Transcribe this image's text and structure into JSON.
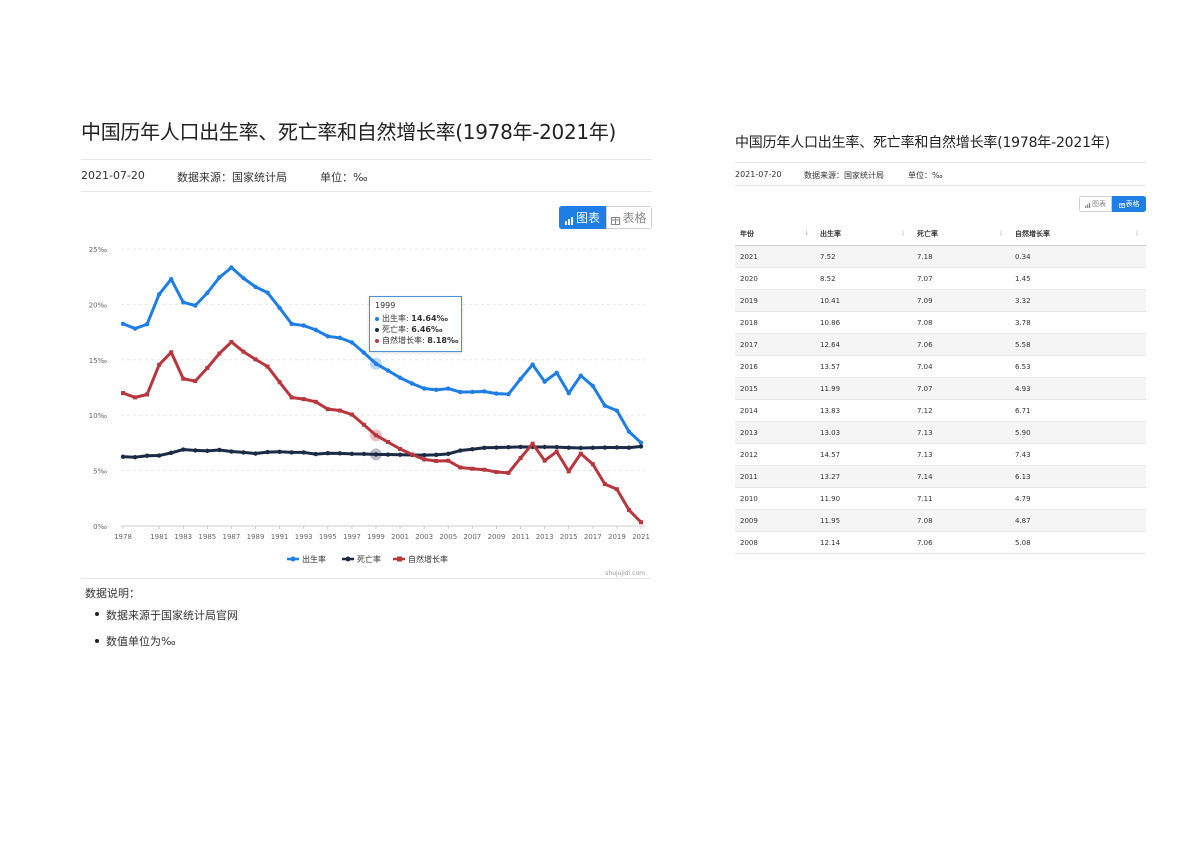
{
  "left": {
    "title": "中国历年人口出生率、死亡率和自然增长率(1978年-2021年)",
    "date": "2021-07-20",
    "source": "数据来源：国家统计局",
    "unit": "单位：‰",
    "chart_button": "图表",
    "table_button": "表格",
    "watermark": "shujujidi.com",
    "notes_title": "数据说明：",
    "notes": [
      "数据来源于国家统计局官网",
      "数值单位为‰"
    ]
  },
  "tooltip": {
    "year": "1999",
    "rows": [
      {
        "label": "出生率: ",
        "value": "14.64‰"
      },
      {
        "label": "死亡率: ",
        "value": "6.46‰"
      },
      {
        "label": "自然增长率: ",
        "value": "8.18‰"
      }
    ]
  },
  "colors": {
    "birth": "#1e7ee6",
    "death": "#1c2b45",
    "growth": "#b8363d",
    "accent": "#1e7ee6"
  },
  "chart_data": {
    "type": "line",
    "x": [
      1978,
      1979,
      1980,
      1981,
      1982,
      1983,
      1984,
      1985,
      1986,
      1987,
      1988,
      1989,
      1990,
      1991,
      1992,
      1993,
      1994,
      1995,
      1996,
      1997,
      1998,
      1999,
      2000,
      2001,
      2002,
      2003,
      2004,
      2005,
      2006,
      2007,
      2008,
      2009,
      2010,
      2011,
      2012,
      2013,
      2014,
      2015,
      2016,
      2017,
      2018,
      2019,
      2020,
      2021
    ],
    "x_tick_labels": [
      "1978",
      "1981",
      "1983",
      "1985",
      "1987",
      "1989",
      "1991",
      "1993",
      "1995",
      "1997",
      "1999",
      "2001",
      "2003",
      "2005",
      "2007",
      "2009",
      "2011",
      "2013",
      "2015",
      "2017",
      "2019",
      "2021"
    ],
    "y_tick_labels": [
      "0‰",
      "5‰",
      "10‰",
      "15‰",
      "20‰",
      "25‰"
    ],
    "ylim": [
      0,
      25
    ],
    "grid": true,
    "legend": "bottom-center",
    "series": [
      {
        "name": "出生率",
        "values": [
          18.25,
          17.82,
          18.21,
          20.91,
          22.28,
          20.19,
          19.9,
          21.04,
          22.43,
          23.33,
          22.37,
          21.58,
          21.06,
          19.68,
          18.24,
          18.09,
          17.7,
          17.12,
          16.98,
          16.57,
          15.64,
          14.64,
          14.03,
          13.38,
          12.86,
          12.41,
          12.29,
          12.4,
          12.09,
          12.1,
          12.14,
          11.95,
          11.9,
          13.27,
          14.57,
          13.03,
          13.83,
          11.99,
          13.57,
          12.64,
          10.86,
          10.41,
          8.52,
          7.52
        ]
      },
      {
        "name": "死亡率",
        "values": [
          6.25,
          6.21,
          6.34,
          6.36,
          6.6,
          6.9,
          6.82,
          6.78,
          6.86,
          6.72,
          6.64,
          6.54,
          6.67,
          6.7,
          6.64,
          6.64,
          6.49,
          6.57,
          6.56,
          6.51,
          6.5,
          6.46,
          6.45,
          6.43,
          6.41,
          6.4,
          6.42,
          6.51,
          6.81,
          6.93,
          7.06,
          7.08,
          7.11,
          7.14,
          7.13,
          7.13,
          7.12,
          7.07,
          7.04,
          7.06,
          7.08,
          7.09,
          7.07,
          7.18
        ]
      },
      {
        "name": "自然增长率",
        "values": [
          12.0,
          11.61,
          11.87,
          14.55,
          15.68,
          13.29,
          13.08,
          14.26,
          15.57,
          16.61,
          15.73,
          15.04,
          14.39,
          12.98,
          11.6,
          11.45,
          11.21,
          10.55,
          10.42,
          10.06,
          9.14,
          8.18,
          7.58,
          6.95,
          6.45,
          6.01,
          5.87,
          5.89,
          5.28,
          5.17,
          5.08,
          4.87,
          4.79,
          6.13,
          7.43,
          5.9,
          6.71,
          4.93,
          6.53,
          5.58,
          3.78,
          3.32,
          1.45,
          0.34
        ]
      }
    ],
    "highlight_x": 1999
  },
  "right": {
    "title": "中国历年人口出生率、死亡率和自然增长率(1978年-2021年)",
    "date": "2021-07-20",
    "source": "数据来源：国家统计局",
    "unit": "单位：‰",
    "chart_button": "图表",
    "table_button": "表格",
    "headers": [
      "年份",
      "出生率",
      "死亡率",
      "自然增长率"
    ],
    "rows": [
      [
        "2021",
        "7.52",
        "7.18",
        "0.34"
      ],
      [
        "2020",
        "8.52",
        "7.07",
        "1.45"
      ],
      [
        "2019",
        "10.41",
        "7.09",
        "3.32"
      ],
      [
        "2018",
        "10.86",
        "7.08",
        "3.78"
      ],
      [
        "2017",
        "12.64",
        "7.06",
        "5.58"
      ],
      [
        "2016",
        "13.57",
        "7.04",
        "6.53"
      ],
      [
        "2015",
        "11.99",
        "7.07",
        "4.93"
      ],
      [
        "2014",
        "13.83",
        "7.12",
        "6.71"
      ],
      [
        "2013",
        "13.03",
        "7.13",
        "5.90"
      ],
      [
        "2012",
        "14.57",
        "7.13",
        "7.43"
      ],
      [
        "2011",
        "13.27",
        "7.14",
        "6.13"
      ],
      [
        "2010",
        "11.90",
        "7.11",
        "4.79"
      ],
      [
        "2009",
        "11.95",
        "7.08",
        "4.87"
      ],
      [
        "2008",
        "12.14",
        "7.06",
        "5.08"
      ]
    ]
  }
}
